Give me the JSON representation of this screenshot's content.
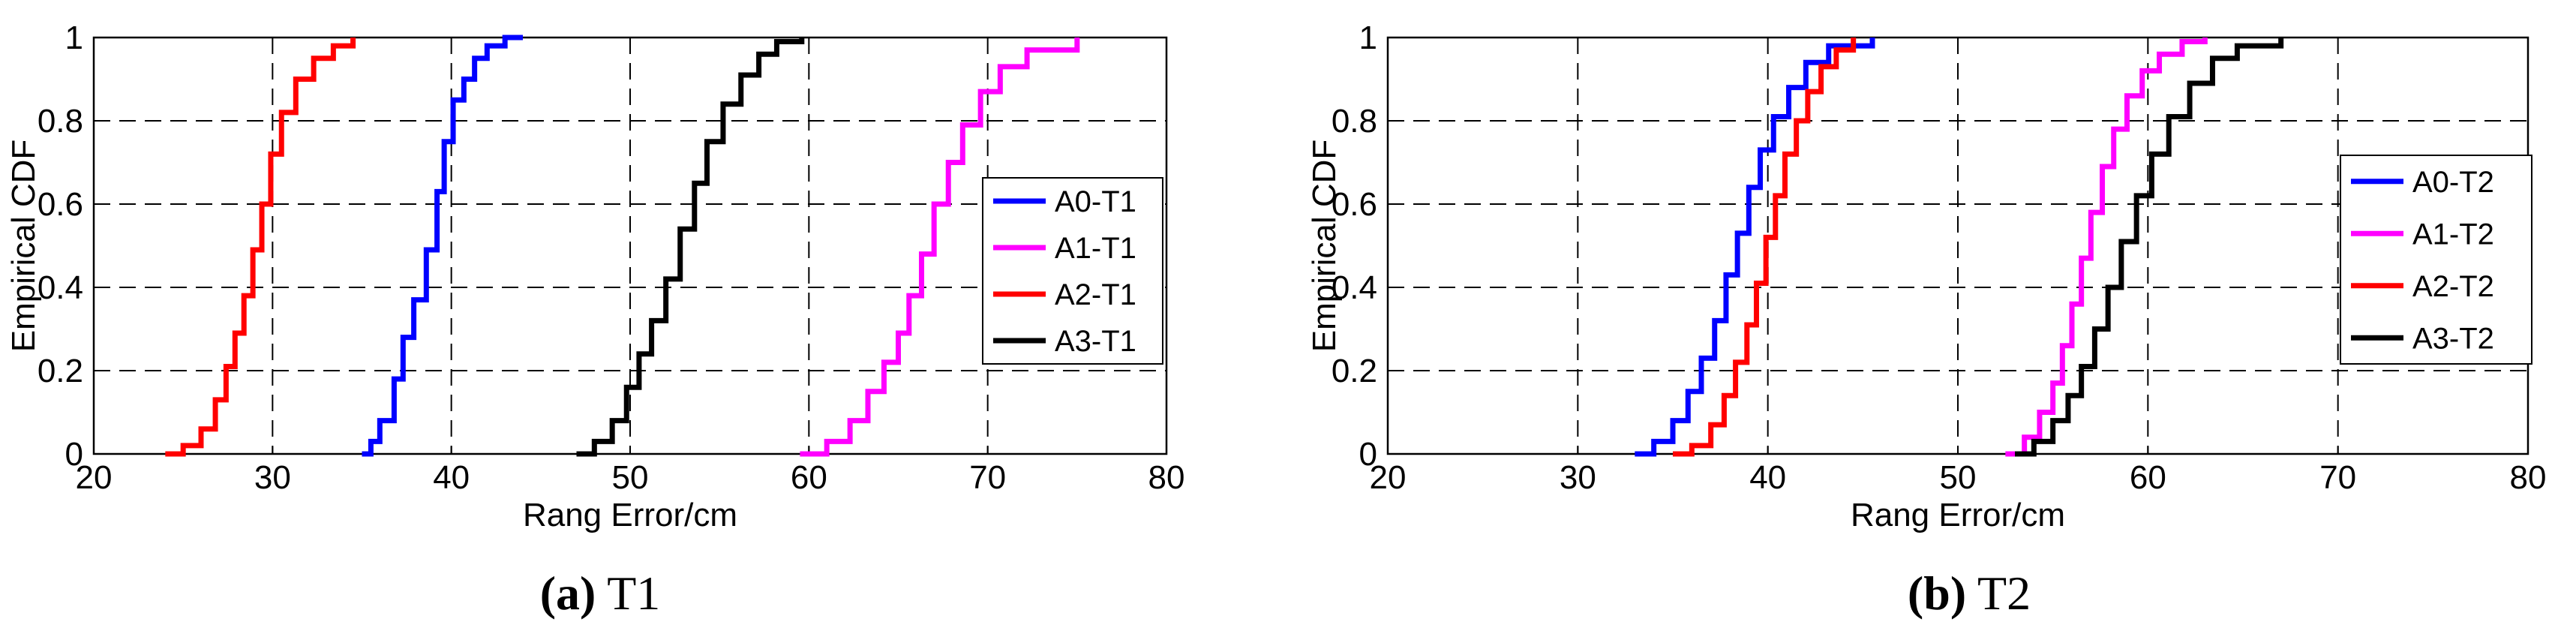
{
  "chart_data": [
    {
      "type": "line",
      "caption_label": "(a)",
      "caption_title": "T1",
      "xlabel": "Rang Error/cm",
      "ylabel": "Empirical CDF",
      "xlim": [
        20,
        80
      ],
      "ylim": [
        0,
        1
      ],
      "xticks": [
        "20",
        "30",
        "40",
        "50",
        "60",
        "70",
        "80"
      ],
      "yticks": [
        "0",
        "0.2",
        "0.4",
        "0.6",
        "0.8",
        "1"
      ],
      "grid": true,
      "legend_position": "right",
      "series": [
        {
          "name": "A0-T1",
          "color": "#0000FF",
          "x": [
            35,
            35.5,
            36,
            36.8,
            37.3,
            37.9,
            38.6,
            39.2,
            39.6,
            40.1,
            40.7,
            41.3,
            42,
            43,
            44
          ],
          "y": [
            0,
            0.03,
            0.08,
            0.18,
            0.28,
            0.37,
            0.49,
            0.63,
            0.75,
            0.85,
            0.9,
            0.95,
            0.98,
            1,
            1
          ]
        },
        {
          "name": "A1-T1",
          "color": "#FF00FF",
          "x": [
            59.5,
            61,
            62.3,
            63.3,
            64.2,
            65,
            65.6,
            66.3,
            67,
            67.8,
            68.6,
            69.6,
            70.7,
            72.2,
            75
          ],
          "y": [
            0,
            0.03,
            0.08,
            0.15,
            0.22,
            0.29,
            0.38,
            0.48,
            0.6,
            0.7,
            0.79,
            0.87,
            0.93,
            0.97,
            1
          ]
        },
        {
          "name": "A2-T1",
          "color": "#FF0000",
          "x": [
            24,
            25,
            26,
            26.8,
            27.4,
            27.9,
            28.4,
            28.9,
            29.4,
            29.9,
            30.5,
            31.3,
            32.3,
            33.4,
            34.5
          ],
          "y": [
            0,
            0.02,
            0.06,
            0.13,
            0.21,
            0.29,
            0.38,
            0.49,
            0.6,
            0.72,
            0.82,
            0.9,
            0.95,
            0.98,
            1
          ]
        },
        {
          "name": "A3-T1",
          "color": "#000000",
          "x": [
            47,
            48,
            49,
            49.8,
            50.5,
            51.2,
            52,
            52.8,
            53.6,
            54.3,
            55.2,
            56.2,
            57.2,
            58.2,
            59.6
          ],
          "y": [
            0,
            0.03,
            0.08,
            0.16,
            0.24,
            0.32,
            0.42,
            0.54,
            0.65,
            0.75,
            0.84,
            0.91,
            0.96,
            0.99,
            1
          ]
        }
      ]
    },
    {
      "type": "line",
      "caption_label": "(b)",
      "caption_title": "T2",
      "xlabel": "Rang Error/cm",
      "ylabel": "Empirical CDF",
      "xlim": [
        20,
        80
      ],
      "ylim": [
        0,
        1
      ],
      "xticks": [
        "20",
        "30",
        "40",
        "50",
        "60",
        "70",
        "80"
      ],
      "yticks": [
        "0",
        "0.2",
        "0.4",
        "0.6",
        "0.8",
        "1"
      ],
      "grid": true,
      "legend_position": "right",
      "series": [
        {
          "name": "A0-T2",
          "color": "#0000FF",
          "x": [
            33,
            34,
            35,
            35.8,
            36.5,
            37.2,
            37.8,
            38.4,
            39,
            39.6,
            40.3,
            41.1,
            42,
            43.2,
            45.5
          ],
          "y": [
            0,
            0.03,
            0.08,
            0.15,
            0.23,
            0.32,
            0.43,
            0.53,
            0.64,
            0.73,
            0.81,
            0.88,
            0.94,
            0.98,
            1
          ]
        },
        {
          "name": "A1-T2",
          "color": "#FF00FF",
          "x": [
            52.5,
            53.5,
            54.3,
            55,
            55.5,
            56,
            56.5,
            57,
            57.6,
            58.2,
            58.9,
            59.7,
            60.6,
            61.8,
            63
          ],
          "y": [
            0,
            0.04,
            0.1,
            0.17,
            0.26,
            0.36,
            0.47,
            0.58,
            0.69,
            0.78,
            0.86,
            0.92,
            0.96,
            0.99,
            1
          ]
        },
        {
          "name": "A2-T2",
          "color": "#FF0000",
          "x": [
            35,
            36,
            37,
            37.7,
            38.3,
            38.9,
            39.4,
            39.9,
            40.4,
            40.9,
            41.5,
            42.1,
            42.8,
            43.6,
            44.5
          ],
          "y": [
            0,
            0.02,
            0.07,
            0.14,
            0.22,
            0.31,
            0.41,
            0.52,
            0.62,
            0.72,
            0.8,
            0.87,
            0.93,
            0.97,
            1
          ]
        },
        {
          "name": "A3-T2",
          "color": "#000000",
          "x": [
            53,
            54,
            55,
            55.8,
            56.5,
            57.2,
            57.9,
            58.6,
            59.4,
            60.2,
            61.1,
            62.2,
            63.4,
            64.7,
            67
          ],
          "y": [
            0,
            0.03,
            0.08,
            0.14,
            0.21,
            0.3,
            0.4,
            0.51,
            0.62,
            0.72,
            0.81,
            0.89,
            0.95,
            0.98,
            1
          ]
        }
      ]
    }
  ]
}
